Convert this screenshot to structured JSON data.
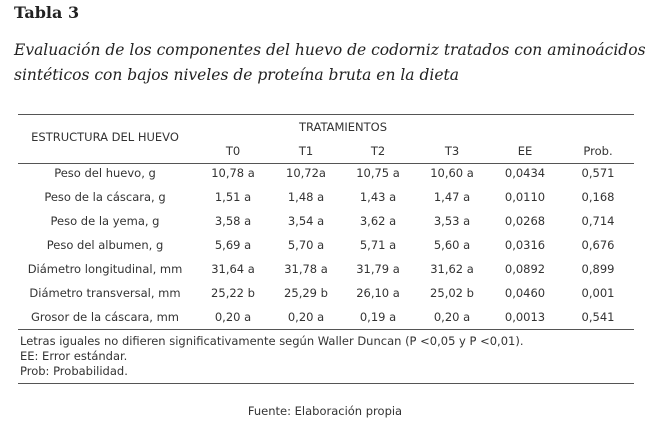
{
  "header": {
    "label": "Tabla 3",
    "caption_lines": [
      "Evaluación de los componentes del huevo de codorniz tratados con aminoácidos",
      "sintéticos con bajos niveles de proteína bruta en la dieta"
    ]
  },
  "table": {
    "row_header": "ESTRUCTURA DEL HUEVO",
    "group_header": "TRATAMIENTOS",
    "columns": [
      "T0",
      "T1",
      "T2",
      "T3",
      "EE",
      "Prob."
    ],
    "rows": [
      [
        "Peso del huevo, g",
        "10,78 a",
        "10,72a",
        "10,75 a",
        "10,60 a",
        "0,0434",
        "0,571"
      ],
      [
        "Peso de la cáscara, g",
        "1,51 a",
        "1,48 a",
        "1,43 a",
        "1,47 a",
        "0,0110",
        "0,168"
      ],
      [
        "Peso de la yema, g",
        "3,58 a",
        "3,54 a",
        "3,62 a",
        "3,53 a",
        "0,0268",
        "0,714"
      ],
      [
        "Peso del albumen, g",
        "5,69 a",
        "5,70 a",
        "5,71 a",
        "5,60 a",
        "0,0316",
        "0,676"
      ],
      [
        "Diámetro longitudinal, mm",
        "31,64 a",
        "31,78 a",
        "31,79 a",
        "31,62 a",
        "0,0892",
        "0,899"
      ],
      [
        "Diámetro transversal, mm",
        "25,22 b",
        "25,29 b",
        "26,10 a",
        "25,02 b",
        "0,0460",
        "0,001"
      ],
      [
        "Grosor de la cáscara, mm",
        "0,20 a",
        "0,20 a",
        "0,19 a",
        "0,20 a",
        "0,0013",
        "0,541"
      ]
    ],
    "notes": [
      "Letras iguales no difieren significativamente según Waller Duncan (P <0,05 y P <0,01).",
      "EE: Error estándar.",
      "Prob: Probabilidad."
    ]
  },
  "source": "Fuente: Elaboración propia"
}
